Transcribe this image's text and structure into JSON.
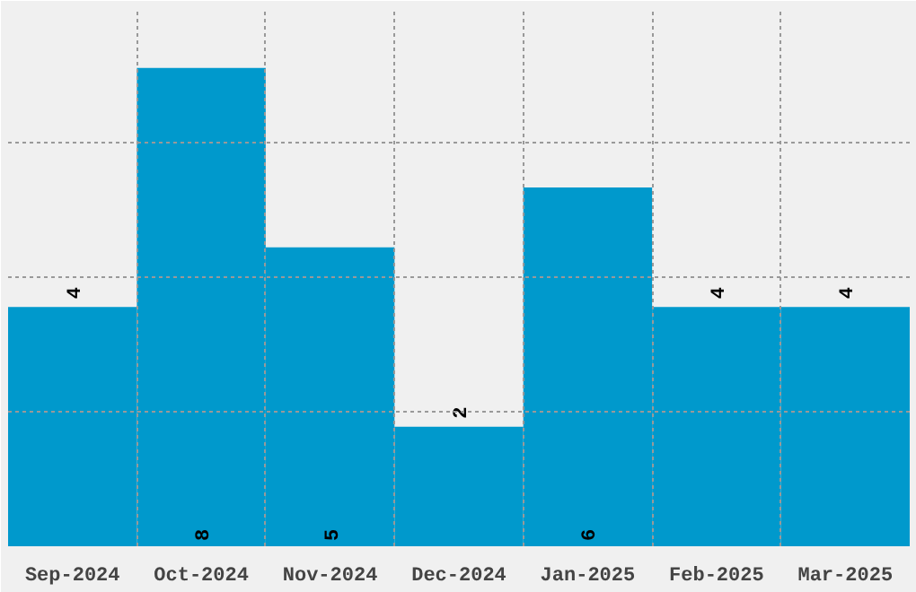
{
  "chart_data": {
    "type": "bar",
    "categories": [
      "Sep-2024",
      "Oct-2024",
      "Nov-2024",
      "Dec-2024",
      "Jan-2025",
      "Feb-2025",
      "Mar-2025"
    ],
    "values": [
      4,
      8,
      5,
      2,
      6,
      4,
      4
    ],
    "color": "#0099cc",
    "data_labels": true,
    "grid": true,
    "ylim": [
      0,
      9
    ],
    "yticks": [
      {
        "value": 2.25,
        "label": null
      },
      {
        "value": 4.5,
        "label": null
      },
      {
        "value": 6.75,
        "label": null
      }
    ],
    "tick_labels": "x"
  }
}
